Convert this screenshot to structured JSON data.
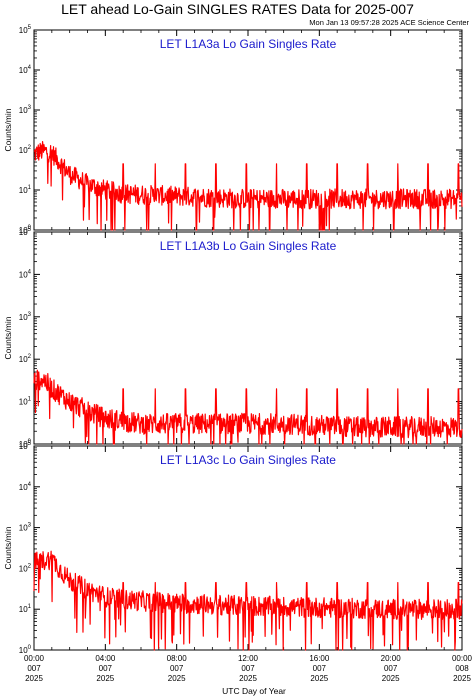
{
  "page": {
    "title": "LET ahead Lo-Gain SINGLES RATES Data for 2025-007",
    "timestamp": "Mon Jan 13 09:57:28 2025 ACE Science Center"
  },
  "colors": {
    "series": "#ff0000",
    "panel_title": "#1a1acc",
    "axes": "#000000"
  },
  "chart_data": [
    {
      "type": "line",
      "title": "LET L1A3a Lo Gain Singles Rate",
      "ylabel": "Counts/min",
      "xlabel": "",
      "yscale": "log",
      "ylim": [
        1,
        100000
      ],
      "xlim": [
        "2025-007 00:00",
        "2025-008 00:00"
      ],
      "y_ticks": [
        "10^0",
        "10^1",
        "10^2",
        "10^3",
        "10^4",
        "10^5"
      ],
      "series": [
        {
          "baseline": [
            [
              0,
              80
            ],
            [
              0.5,
              95
            ],
            [
              1,
              85
            ],
            [
              1.5,
              45
            ],
            [
              2,
              25
            ],
            [
              3,
              14
            ],
            [
              4,
              10
            ],
            [
              5,
              8
            ],
            [
              8,
              7
            ],
            [
              12,
              6
            ],
            [
              16,
              6
            ],
            [
              20,
              6
            ],
            [
              24,
              6
            ]
          ],
          "spikes_hour": [
            5.0,
            6.8,
            8.5,
            10.2,
            11.9,
            13.6,
            15.3,
            17.0,
            18.7,
            20.4,
            22.1,
            23.8
          ],
          "spike_value": 45
        }
      ]
    },
    {
      "type": "line",
      "title": "LET L1A3b Lo Gain Singles Rate",
      "ylabel": "Counts/min",
      "xlabel": "",
      "yscale": "log",
      "ylim": [
        1,
        100000
      ],
      "xlim": [
        "2025-007 00:00",
        "2025-008 00:00"
      ],
      "y_ticks": [
        "10^0",
        "10^1",
        "10^2",
        "10^3",
        "10^4",
        "10^5"
      ],
      "series": [
        {
          "baseline": [
            [
              0,
              30
            ],
            [
              0.5,
              35
            ],
            [
              1,
              20
            ],
            [
              2,
              10
            ],
            [
              3,
              6
            ],
            [
              4,
              4
            ],
            [
              6,
              3
            ],
            [
              10,
              3
            ],
            [
              14,
              3
            ],
            [
              18,
              2.5
            ],
            [
              24,
              2.5
            ]
          ],
          "spikes_hour": [
            5.0,
            6.8,
            8.5,
            10.2,
            11.9,
            13.6,
            15.3,
            17.0,
            18.7,
            20.4,
            22.1,
            23.8
          ],
          "spike_value": 20
        }
      ]
    },
    {
      "type": "line",
      "title": "LET L1A3c Lo Gain Singles Rate",
      "ylabel": "Counts/min",
      "xlabel": "UTC Day of Year",
      "yscale": "log",
      "ylim": [
        1,
        100000
      ],
      "xlim": [
        "2025-007 00:00",
        "2025-008 00:00"
      ],
      "y_ticks": [
        "10^0",
        "10^1",
        "10^2",
        "10^3",
        "10^4",
        "10^5"
      ],
      "x_ticks": [
        {
          "time": "00:00",
          "day": "007",
          "year": "2025"
        },
        {
          "time": "04:00",
          "day": "007",
          "year": "2025"
        },
        {
          "time": "08:00",
          "day": "007",
          "year": "2025"
        },
        {
          "time": "12:00",
          "day": "007",
          "year": "2025"
        },
        {
          "time": "16:00",
          "day": "007",
          "year": "2025"
        },
        {
          "time": "20:00",
          "day": "007",
          "year": "2025"
        },
        {
          "time": "00:00",
          "day": "008",
          "year": "2025"
        }
      ],
      "series": [
        {
          "baseline": [
            [
              0,
              140
            ],
            [
              0.5,
              155
            ],
            [
              1,
              170
            ],
            [
              1.5,
              90
            ],
            [
              2,
              50
            ],
            [
              3,
              30
            ],
            [
              4,
              20
            ],
            [
              5,
              17
            ],
            [
              8,
              14
            ],
            [
              12,
              12
            ],
            [
              16,
              11
            ],
            [
              20,
              10
            ],
            [
              24,
              10
            ]
          ],
          "spikes_hour": [
            5.0,
            6.8,
            8.5,
            10.2,
            11.9,
            13.6,
            15.3,
            17.0,
            18.7,
            20.4,
            22.1,
            23.8
          ],
          "spike_value": 45
        }
      ]
    }
  ]
}
